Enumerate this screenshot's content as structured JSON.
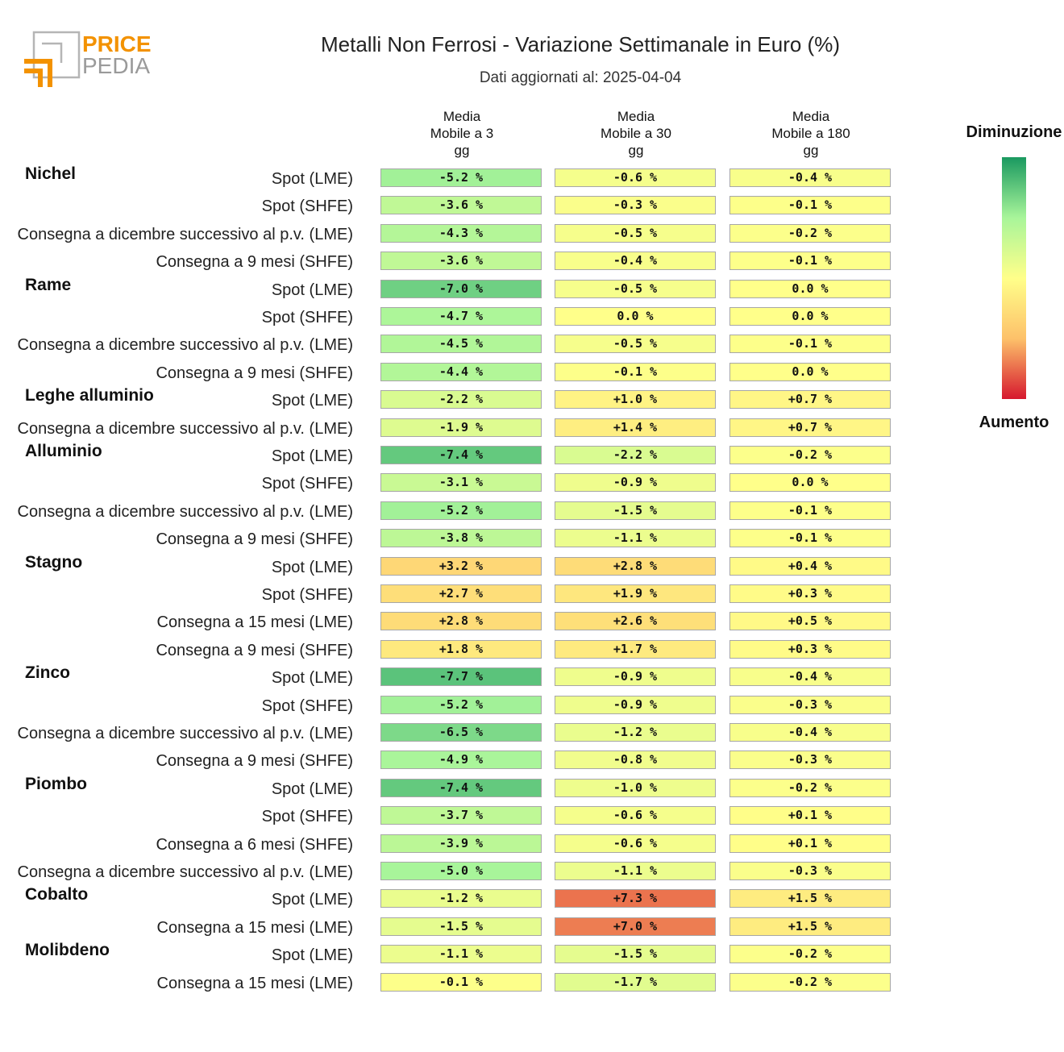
{
  "logo": {
    "line1": "PRICE",
    "line2": "PEDIA"
  },
  "title": "Metalli Non Ferrosi - Variazione Settimanale in Euro (%)",
  "subtitle": "Dati aggiornati al: 2025-04-04",
  "legend": {
    "top_label": "Diminuzione",
    "bottom_label": "Aumento"
  },
  "colors": {
    "scale": [
      "#1a9960",
      "#a8f59a",
      "#ffff8a",
      "#fdc16a",
      "#d6182e"
    ]
  },
  "chart_data": {
    "type": "table",
    "columns": [
      "Media\nMobile a 3\ngg",
      "Media\nMobile a 30\ngg",
      "Media\nMobile a 180\ngg"
    ],
    "color_scale_range": [
      -10,
      10
    ],
    "groups": [
      {
        "name": "Nichel",
        "rows": [
          {
            "label": "Spot (LME)",
            "values": [
              -5.2,
              -0.6,
              -0.4
            ],
            "display": [
              "-5.2 %",
              "-0.6 %",
              "-0.4 %"
            ]
          },
          {
            "label": "Spot (SHFE)",
            "values": [
              -3.6,
              -0.3,
              -0.1
            ],
            "display": [
              "-3.6 %",
              "-0.3 %",
              "-0.1 %"
            ]
          },
          {
            "label": "Consegna a dicembre successivo al p.v. (LME)",
            "values": [
              -4.3,
              -0.5,
              -0.2
            ],
            "display": [
              "-4.3 %",
              "-0.5 %",
              "-0.2 %"
            ]
          },
          {
            "label": "Consegna a 9 mesi (SHFE)",
            "values": [
              -3.6,
              -0.4,
              -0.1
            ],
            "display": [
              "-3.6 %",
              "-0.4 %",
              "-0.1 %"
            ]
          }
        ]
      },
      {
        "name": "Rame",
        "rows": [
          {
            "label": "Spot (LME)",
            "values": [
              -7.0,
              -0.5,
              0.0
            ],
            "display": [
              "-7.0 %",
              "-0.5 %",
              "0.0 %"
            ]
          },
          {
            "label": "Spot (SHFE)",
            "values": [
              -4.7,
              0.0,
              0.0
            ],
            "display": [
              "-4.7 %",
              "0.0 %",
              "0.0 %"
            ]
          },
          {
            "label": "Consegna a dicembre successivo al p.v. (LME)",
            "values": [
              -4.5,
              -0.5,
              -0.1
            ],
            "display": [
              "-4.5 %",
              "-0.5 %",
              "-0.1 %"
            ]
          },
          {
            "label": "Consegna a 9 mesi (SHFE)",
            "values": [
              -4.4,
              -0.1,
              0.0
            ],
            "display": [
              "-4.4 %",
              "-0.1 %",
              "0.0 %"
            ]
          }
        ]
      },
      {
        "name": "Leghe alluminio",
        "rows": [
          {
            "label": "Spot (LME)",
            "values": [
              -2.2,
              1.0,
              0.7
            ],
            "display": [
              "-2.2 %",
              "+1.0 %",
              "+0.7 %"
            ]
          },
          {
            "label": "Consegna a dicembre successivo al p.v. (LME)",
            "values": [
              -1.9,
              1.4,
              0.7
            ],
            "display": [
              "-1.9 %",
              "+1.4 %",
              "+0.7 %"
            ]
          }
        ]
      },
      {
        "name": "Alluminio",
        "rows": [
          {
            "label": "Spot (LME)",
            "values": [
              -7.4,
              -2.2,
              -0.2
            ],
            "display": [
              "-7.4 %",
              "-2.2 %",
              "-0.2 %"
            ]
          },
          {
            "label": "Spot (SHFE)",
            "values": [
              -3.1,
              -0.9,
              0.0
            ],
            "display": [
              "-3.1 %",
              "-0.9 %",
              "0.0 %"
            ]
          },
          {
            "label": "Consegna a dicembre successivo al p.v. (LME)",
            "values": [
              -5.2,
              -1.5,
              -0.1
            ],
            "display": [
              "-5.2 %",
              "-1.5 %",
              "-0.1 %"
            ]
          },
          {
            "label": "Consegna a 9 mesi (SHFE)",
            "values": [
              -3.8,
              -1.1,
              -0.1
            ],
            "display": [
              "-3.8 %",
              "-1.1 %",
              "-0.1 %"
            ]
          }
        ]
      },
      {
        "name": "Stagno",
        "rows": [
          {
            "label": "Spot (LME)",
            "values": [
              3.2,
              2.8,
              0.4
            ],
            "display": [
              "+3.2 %",
              "+2.8 %",
              "+0.4 %"
            ]
          },
          {
            "label": "Spot (SHFE)",
            "values": [
              2.7,
              1.9,
              0.3
            ],
            "display": [
              "+2.7 %",
              "+1.9 %",
              "+0.3 %"
            ]
          },
          {
            "label": "Consegna a 15 mesi (LME)",
            "values": [
              2.8,
              2.6,
              0.5
            ],
            "display": [
              "+2.8 %",
              "+2.6 %",
              "+0.5 %"
            ]
          },
          {
            "label": "Consegna a 9 mesi (SHFE)",
            "values": [
              1.8,
              1.7,
              0.3
            ],
            "display": [
              "+1.8 %",
              "+1.7 %",
              "+0.3 %"
            ]
          }
        ]
      },
      {
        "name": "Zinco",
        "rows": [
          {
            "label": "Spot (LME)",
            "values": [
              -7.7,
              -0.9,
              -0.4
            ],
            "display": [
              "-7.7 %",
              "-0.9 %",
              "-0.4 %"
            ]
          },
          {
            "label": "Spot (SHFE)",
            "values": [
              -5.2,
              -0.9,
              -0.3
            ],
            "display": [
              "-5.2 %",
              "-0.9 %",
              "-0.3 %"
            ]
          },
          {
            "label": "Consegna a dicembre successivo al p.v. (LME)",
            "values": [
              -6.5,
              -1.2,
              -0.4
            ],
            "display": [
              "-6.5 %",
              "-1.2 %",
              "-0.4 %"
            ]
          },
          {
            "label": "Consegna a 9 mesi (SHFE)",
            "values": [
              -4.9,
              -0.8,
              -0.3
            ],
            "display": [
              "-4.9 %",
              "-0.8 %",
              "-0.3 %"
            ]
          }
        ]
      },
      {
        "name": "Piombo",
        "rows": [
          {
            "label": "Spot (LME)",
            "values": [
              -7.4,
              -1.0,
              -0.2
            ],
            "display": [
              "-7.4 %",
              "-1.0 %",
              "-0.2 %"
            ]
          },
          {
            "label": "Spot (SHFE)",
            "values": [
              -3.7,
              -0.6,
              0.1
            ],
            "display": [
              "-3.7 %",
              "-0.6 %",
              "+0.1 %"
            ]
          },
          {
            "label": "Consegna a 6 mesi (SHFE)",
            "values": [
              -3.9,
              -0.6,
              0.1
            ],
            "display": [
              "-3.9 %",
              "-0.6 %",
              "+0.1 %"
            ]
          },
          {
            "label": "Consegna a dicembre successivo al p.v. (LME)",
            "values": [
              -5.0,
              -1.1,
              -0.3
            ],
            "display": [
              "-5.0 %",
              "-1.1 %",
              "-0.3 %"
            ]
          }
        ]
      },
      {
        "name": "Cobalto",
        "rows": [
          {
            "label": "Spot (LME)",
            "values": [
              -1.2,
              7.3,
              1.5
            ],
            "display": [
              "-1.2 %",
              "+7.3 %",
              "+1.5 %"
            ]
          },
          {
            "label": "Consegna a 15 mesi (LME)",
            "values": [
              -1.5,
              7.0,
              1.5
            ],
            "display": [
              "-1.5 %",
              "+7.0 %",
              "+1.5 %"
            ]
          }
        ]
      },
      {
        "name": "Molibdeno",
        "rows": [
          {
            "label": "Spot (LME)",
            "values": [
              -1.1,
              -1.5,
              -0.2
            ],
            "display": [
              "-1.1 %",
              "-1.5 %",
              "-0.2 %"
            ]
          },
          {
            "label": "Consegna a 15 mesi (LME)",
            "values": [
              -0.1,
              -1.7,
              -0.2
            ],
            "display": [
              "-0.1 %",
              "-1.7 %",
              "-0.2 %"
            ]
          }
        ]
      }
    ]
  }
}
